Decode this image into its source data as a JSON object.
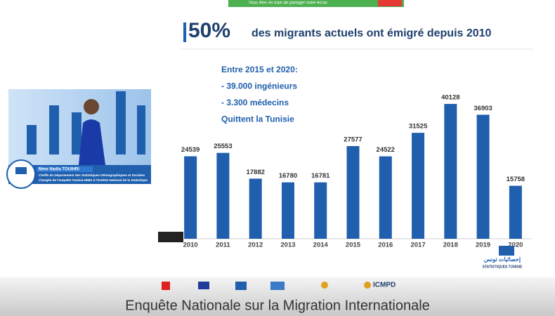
{
  "screen_share_notice": "Vous êtes en train de partager votre écran",
  "chart_data": {
    "type": "bar",
    "title": "50%",
    "subtitle": "des migrants actuels ont émigré depuis 2010",
    "annotations": [
      "Entre 2015 et 2020:",
      "- 39.000 ingénieurs",
      "- 3.300 médecins",
      "Quittent la Tunisie"
    ],
    "categories": [
      "2010",
      "2011",
      "2012",
      "2013",
      "2014",
      "2015",
      "2016",
      "2017",
      "2018",
      "2019",
      "2020"
    ],
    "values": [
      24539,
      25553,
      17882,
      16780,
      16781,
      27577,
      24522,
      31525,
      40128,
      36903,
      15758
    ],
    "color": "#1f5fad",
    "ylim": [
      0,
      42000
    ]
  },
  "speaker": {
    "name": "Mme Nadia TOUIHRI",
    "role": [
      "Cheffe du Département des Statistiques Démographiques et Sociales",
      "Chargée de l'enquête Tunisia-HIMS à l'Institut National de la Statistique"
    ]
  },
  "footer": {
    "caption": "Enquête Nationale sur la Migration Internationale",
    "logo_texts": [
      "ICMPD",
      "إحصائيات تونس",
      "STATISTIQUES TUNISIE"
    ]
  }
}
